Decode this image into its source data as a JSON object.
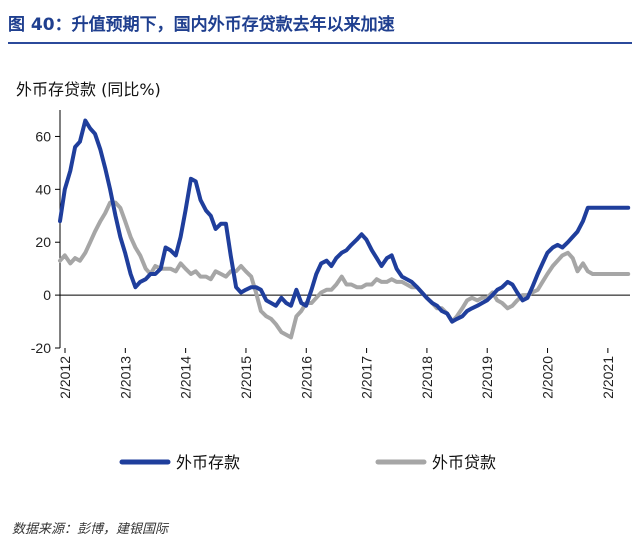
{
  "figure_title": "图 40：升值预期下，国内外币存贷款去年以来加速",
  "source_note": "数据来源：彭博，建银国际",
  "colors": {
    "deposits": "#1f3e9c",
    "loans": "#a6a6a6",
    "axis": "#000000",
    "title": "#1f3f8f"
  },
  "chart_data": {
    "type": "line",
    "title": "",
    "ylabel": "外币存贷款 (同比%)",
    "xlabel": "",
    "ylim": [
      -20,
      70
    ],
    "yticks": [
      -20,
      0,
      20,
      40,
      60
    ],
    "xlim": [
      2012.0,
      2021.45
    ],
    "xticks": [
      {
        "value": 2012.083,
        "label": "2/2012"
      },
      {
        "value": 2013.083,
        "label": "2/2013"
      },
      {
        "value": 2014.083,
        "label": "2/2014"
      },
      {
        "value": 2015.083,
        "label": "2/2015"
      },
      {
        "value": 2016.083,
        "label": "2/2016"
      },
      {
        "value": 2017.083,
        "label": "2/2017"
      },
      {
        "value": 2018.083,
        "label": "2/2018"
      },
      {
        "value": 2019.083,
        "label": "2/2019"
      },
      {
        "value": 2020.083,
        "label": "2/2020"
      },
      {
        "value": 2021.083,
        "label": "2/2021"
      }
    ],
    "grid": false,
    "legend_position": "bottom",
    "series": [
      {
        "name": "外币存款",
        "x": [
          2012.0,
          2012.08,
          2012.17,
          2012.25,
          2012.33,
          2012.42,
          2012.5,
          2012.58,
          2012.67,
          2012.75,
          2012.83,
          2012.92,
          2013.0,
          2013.08,
          2013.17,
          2013.25,
          2013.33,
          2013.42,
          2013.5,
          2013.58,
          2013.67,
          2013.75,
          2013.83,
          2013.92,
          2014.0,
          2014.08,
          2014.17,
          2014.25,
          2014.33,
          2014.42,
          2014.5,
          2014.58,
          2014.67,
          2014.75,
          2014.83,
          2014.92,
          2015.0,
          2015.08,
          2015.17,
          2015.25,
          2015.33,
          2015.42,
          2015.5,
          2015.58,
          2015.67,
          2015.75,
          2015.83,
          2015.92,
          2016.0,
          2016.08,
          2016.17,
          2016.25,
          2016.33,
          2016.42,
          2016.5,
          2016.58,
          2016.67,
          2016.75,
          2016.83,
          2016.92,
          2017.0,
          2017.08,
          2017.17,
          2017.25,
          2017.33,
          2017.42,
          2017.5,
          2017.58,
          2017.67,
          2017.75,
          2017.83,
          2017.92,
          2018.0,
          2018.08,
          2018.17,
          2018.25,
          2018.33,
          2018.42,
          2018.5,
          2018.58,
          2018.67,
          2018.75,
          2018.83,
          2018.92,
          2019.0,
          2019.08,
          2019.17,
          2019.25,
          2019.33,
          2019.42,
          2019.5,
          2019.58,
          2019.67,
          2019.75,
          2019.83,
          2019.92,
          2020.0,
          2020.08,
          2020.17,
          2020.25,
          2020.33,
          2020.42,
          2020.5,
          2020.58,
          2020.67,
          2020.75,
          2020.83,
          2020.92,
          2021.0,
          2021.08,
          2021.17,
          2021.25,
          2021.33,
          2021.42
        ],
        "values": [
          28,
          40,
          47,
          56,
          58,
          66,
          63,
          61,
          55,
          48,
          40,
          30,
          22,
          16,
          8,
          3,
          5,
          6,
          8,
          8,
          10,
          18,
          17,
          15,
          22,
          32,
          44,
          43,
          36,
          32,
          30,
          25,
          27,
          27,
          15,
          3,
          1,
          2,
          3,
          3,
          2,
          -2,
          -3,
          -4,
          -1,
          -3,
          -4,
          2,
          -3,
          -4,
          2,
          8,
          12,
          13,
          11,
          14,
          16,
          17,
          19,
          21,
          23,
          21,
          17,
          14,
          11,
          14,
          15,
          10,
          7,
          6,
          5,
          3,
          1,
          -1,
          -3,
          -4,
          -6,
          -7,
          -10,
          -9,
          -8,
          -6,
          -5,
          -4,
          -3,
          -2,
          0,
          2,
          3,
          5,
          4,
          1,
          -2,
          -1,
          3,
          8,
          12,
          16,
          18,
          19,
          18,
          20,
          22,
          24,
          28,
          33,
          33,
          33,
          33,
          33,
          33,
          33,
          33,
          33
        ],
        "color": "#1f3e9c"
      },
      {
        "name": "外币贷款",
        "x": [
          2012.0,
          2012.08,
          2012.17,
          2012.25,
          2012.33,
          2012.42,
          2012.5,
          2012.58,
          2012.67,
          2012.75,
          2012.83,
          2012.92,
          2013.0,
          2013.08,
          2013.17,
          2013.25,
          2013.33,
          2013.42,
          2013.5,
          2013.58,
          2013.67,
          2013.75,
          2013.83,
          2013.92,
          2014.0,
          2014.08,
          2014.17,
          2014.25,
          2014.33,
          2014.42,
          2014.5,
          2014.58,
          2014.67,
          2014.75,
          2014.83,
          2014.92,
          2015.0,
          2015.08,
          2015.17,
          2015.25,
          2015.33,
          2015.42,
          2015.5,
          2015.58,
          2015.67,
          2015.75,
          2015.83,
          2015.92,
          2016.0,
          2016.08,
          2016.17,
          2016.25,
          2016.33,
          2016.42,
          2016.5,
          2016.58,
          2016.67,
          2016.75,
          2016.83,
          2016.92,
          2017.0,
          2017.08,
          2017.17,
          2017.25,
          2017.33,
          2017.42,
          2017.5,
          2017.58,
          2017.67,
          2017.75,
          2017.83,
          2017.92,
          2018.0,
          2018.08,
          2018.17,
          2018.25,
          2018.33,
          2018.42,
          2018.5,
          2018.58,
          2018.67,
          2018.75,
          2018.83,
          2018.92,
          2019.0,
          2019.08,
          2019.17,
          2019.25,
          2019.33,
          2019.42,
          2019.5,
          2019.58,
          2019.67,
          2019.75,
          2019.83,
          2019.92,
          2020.0,
          2020.08,
          2020.17,
          2020.25,
          2020.33,
          2020.42,
          2020.5,
          2020.58,
          2020.67,
          2020.75,
          2020.83,
          2020.92,
          2021.0,
          2021.08,
          2021.17,
          2021.25,
          2021.33,
          2021.42
        ],
        "values": [
          13,
          15,
          12,
          14,
          13,
          16,
          20,
          24,
          28,
          31,
          35,
          35,
          33,
          28,
          22,
          18,
          15,
          10,
          8,
          11,
          10,
          10,
          10,
          9,
          12,
          10,
          8,
          9,
          7,
          7,
          6,
          9,
          8,
          7,
          9,
          9,
          11,
          9,
          7,
          1,
          -6,
          -8,
          -9,
          -11,
          -14,
          -15,
          -16,
          -8,
          -6,
          -3,
          -3,
          -1,
          1,
          2,
          2,
          4,
          7,
          4,
          4,
          3,
          3,
          4,
          4,
          6,
          5,
          5,
          6,
          5,
          5,
          4,
          3,
          3,
          1,
          -1,
          -3,
          -5,
          -5,
          -7,
          -10,
          -8,
          -5,
          -2,
          -1,
          -2,
          -1,
          -1,
          1,
          -2,
          -3,
          -5,
          -4,
          -2,
          0,
          0,
          1,
          2,
          5,
          8,
          11,
          13,
          15,
          16,
          14,
          9,
          12,
          9,
          8,
          8,
          8,
          8,
          8,
          8,
          8,
          8
        ],
        "color": "#a6a6a6"
      }
    ]
  }
}
